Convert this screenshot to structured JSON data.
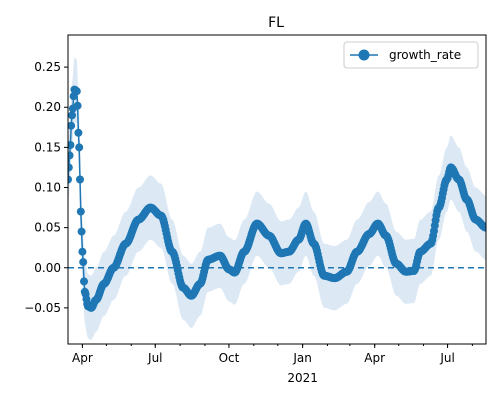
{
  "chart_data": {
    "type": "line",
    "title": "FL",
    "xlabel": "",
    "ylabel": "",
    "x_start": "2020-03-14",
    "x_end": "2021-08-18",
    "xlim": [
      "2020-03-14",
      "2021-08-18"
    ],
    "ylim": [
      -0.095,
      0.29
    ],
    "y_ticks": [
      -0.05,
      0.0,
      0.05,
      0.1,
      0.15,
      0.2,
      0.25
    ],
    "y_tick_labels": [
      "−0.05",
      "0.00",
      "0.05",
      "0.10",
      "0.15",
      "0.20",
      "0.25"
    ],
    "x_ticks": [
      {
        "date": "2020-04-01",
        "label": "Apr",
        "sublabel": ""
      },
      {
        "date": "2020-07-01",
        "label": "Jul",
        "sublabel": ""
      },
      {
        "date": "2020-10-01",
        "label": "Oct",
        "sublabel": ""
      },
      {
        "date": "2021-01-01",
        "label": "Jan",
        "sublabel": "2021"
      },
      {
        "date": "2021-04-01",
        "label": "Apr",
        "sublabel": ""
      },
      {
        "date": "2021-07-01",
        "label": "Jul",
        "sublabel": ""
      }
    ],
    "legend": {
      "position": "top-right",
      "entries": [
        "growth_rate"
      ]
    },
    "reference_line": {
      "y": 0.0,
      "style": "dashed"
    },
    "grid": false,
    "series": [
      {
        "name": "growth_rate",
        "color": "#1f77b4",
        "band_color": "#dce9f5",
        "band_halfwidth": 0.04,
        "keypoints": [
          [
            "2020-03-14",
            0.11
          ],
          [
            "2020-03-16",
            0.14
          ],
          [
            "2020-03-19",
            0.19
          ],
          [
            "2020-03-22",
            0.222
          ],
          [
            "2020-03-25",
            0.22
          ],
          [
            "2020-03-28",
            0.15
          ],
          [
            "2020-03-30",
            0.07
          ],
          [
            "2020-04-01",
            0.02
          ],
          [
            "2020-04-04",
            -0.03
          ],
          [
            "2020-04-08",
            -0.048
          ],
          [
            "2020-04-12",
            -0.05
          ],
          [
            "2020-04-18",
            -0.04
          ],
          [
            "2020-04-28",
            -0.02
          ],
          [
            "2020-05-10",
            0.0
          ],
          [
            "2020-05-25",
            0.03
          ],
          [
            "2020-06-10",
            0.06
          ],
          [
            "2020-06-25",
            0.075
          ],
          [
            "2020-07-08",
            0.065
          ],
          [
            "2020-07-22",
            0.02
          ],
          [
            "2020-08-05",
            -0.025
          ],
          [
            "2020-08-15",
            -0.035
          ],
          [
            "2020-08-26",
            -0.02
          ],
          [
            "2020-09-05",
            0.01
          ],
          [
            "2020-09-20",
            0.015
          ],
          [
            "2020-10-01",
            -0.002
          ],
          [
            "2020-10-08",
            -0.006
          ],
          [
            "2020-10-20",
            0.02
          ],
          [
            "2020-11-05",
            0.055
          ],
          [
            "2020-11-20",
            0.04
          ],
          [
            "2020-12-05",
            0.018
          ],
          [
            "2020-12-15",
            0.02
          ],
          [
            "2020-12-27",
            0.035
          ],
          [
            "2021-01-05",
            0.055
          ],
          [
            "2021-01-15",
            0.03
          ],
          [
            "2021-01-28",
            -0.01
          ],
          [
            "2021-02-10",
            -0.013
          ],
          [
            "2021-02-25",
            -0.005
          ],
          [
            "2021-03-10",
            0.02
          ],
          [
            "2021-03-25",
            0.042
          ],
          [
            "2021-04-05",
            0.055
          ],
          [
            "2021-04-15",
            0.04
          ],
          [
            "2021-04-28",
            0.005
          ],
          [
            "2021-05-10",
            -0.005
          ],
          [
            "2021-05-20",
            -0.004
          ],
          [
            "2021-05-28",
            0.02
          ],
          [
            "2021-06-10",
            0.03
          ],
          [
            "2021-06-20",
            0.075
          ],
          [
            "2021-06-30",
            0.11
          ],
          [
            "2021-07-05",
            0.125
          ],
          [
            "2021-07-15",
            0.11
          ],
          [
            "2021-07-25",
            0.085
          ],
          [
            "2021-08-05",
            0.06
          ],
          [
            "2021-08-18",
            0.05
          ]
        ]
      }
    ]
  }
}
